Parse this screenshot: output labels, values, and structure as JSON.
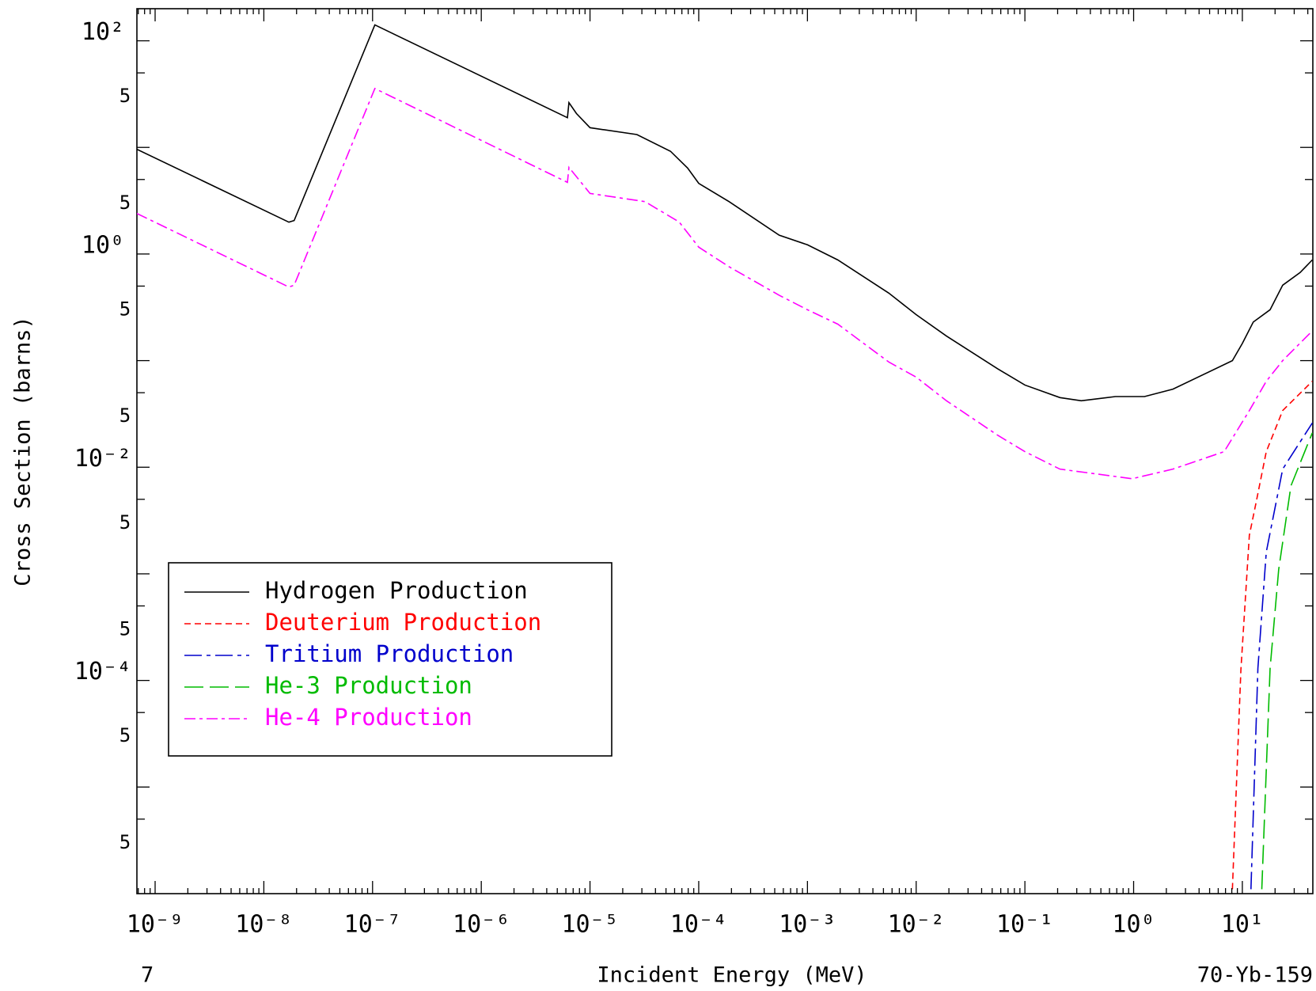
{
  "chart_data": {
    "type": "line",
    "xlabel": "Incident Energy (MeV)",
    "ylabel": "Cross Section (barns)",
    "corner_left": "7",
    "corner_right": "70-Yb-159",
    "xlog": true,
    "ylog": true,
    "legend": "lower left",
    "xlim": [
      6.8e-10,
      44.5
    ],
    "ylim": [
      1e-06,
      200
    ],
    "xticks": [
      {
        "value": 1e-09,
        "label": "10⁻⁹"
      },
      {
        "value": 1e-08,
        "label": "10⁻⁸"
      },
      {
        "value": 1e-07,
        "label": "10⁻⁷"
      },
      {
        "value": 1e-06,
        "label": "10⁻⁶"
      },
      {
        "value": 1e-05,
        "label": "10⁻⁵"
      },
      {
        "value": 0.0001,
        "label": "10⁻⁴"
      },
      {
        "value": 0.001,
        "label": "10⁻³"
      },
      {
        "value": 0.01,
        "label": "10⁻²"
      },
      {
        "value": 0.1,
        "label": "10⁻¹"
      },
      {
        "value": 1,
        "label": "10⁰"
      },
      {
        "value": 10,
        "label": "10¹"
      }
    ],
    "xminorticks": [
      7e-10,
      8e-10,
      9e-10,
      2e-09,
      3e-09,
      4e-09,
      5e-09,
      6e-09,
      7e-09,
      8e-09,
      9e-09,
      2e-08,
      3e-08,
      4e-08,
      5e-08,
      6e-08,
      7e-08,
      8e-08,
      9e-08,
      2e-07,
      3e-07,
      4e-07,
      5e-07,
      6e-07,
      7e-07,
      8e-07,
      9e-07,
      2e-06,
      3e-06,
      4e-06,
      5e-06,
      6e-06,
      7e-06,
      8e-06,
      9e-06,
      2e-05,
      3e-05,
      4e-05,
      5e-05,
      6e-05,
      7e-05,
      8e-05,
      9e-05,
      0.0002,
      0.0003,
      0.0004,
      0.0005,
      0.0006,
      0.0007,
      0.0008,
      0.0009,
      0.002,
      0.003,
      0.004,
      0.005,
      0.006,
      0.007,
      0.008,
      0.009,
      0.02,
      0.03,
      0.04,
      0.05,
      0.06,
      0.07,
      0.08,
      0.09,
      0.2,
      0.3,
      0.4,
      0.5,
      0.6,
      0.7,
      0.8,
      0.9,
      2,
      3,
      4,
      5,
      6,
      7,
      8,
      9,
      20,
      30,
      40
    ],
    "yticks": [
      {
        "value": 100,
        "label": "10²"
      },
      {
        "value": 50,
        "label": "5"
      },
      {
        "value": 10,
        "label": ""
      },
      {
        "value": 5,
        "label": "5"
      },
      {
        "value": 1,
        "label": "10⁰"
      },
      {
        "value": 0.5,
        "label": "5"
      },
      {
        "value": 0.1,
        "label": ""
      },
      {
        "value": 0.05,
        "label": "5"
      },
      {
        "value": 0.01,
        "label": "10⁻²"
      },
      {
        "value": 0.005,
        "label": "5"
      },
      {
        "value": 0.001,
        "label": ""
      },
      {
        "value": 0.0005,
        "label": "5"
      },
      {
        "value": 0.0001,
        "label": "10⁻⁴"
      },
      {
        "value": 5e-05,
        "label": "5"
      },
      {
        "value": 1e-05,
        "label": ""
      },
      {
        "value": 5e-06,
        "label": "5"
      }
    ],
    "series": [
      {
        "name": "Hydrogen Production",
        "color": "#000000",
        "dash": "none",
        "x": [
          6.8e-10,
          1.7e-08,
          1.9e-08,
          1.05e-07,
          6.2e-06,
          6.4e-06,
          7.5e-06,
          1e-05,
          2.7e-05,
          5.5e-05,
          7.9e-05,
          0.0001,
          0.00019,
          0.00055,
          0.001,
          0.0019,
          0.0056,
          0.01,
          0.019,
          0.056,
          0.1,
          0.21,
          0.33,
          0.68,
          1.26,
          2.3,
          8.1,
          10,
          12.6,
          18,
          23.5,
          34,
          44
        ],
        "values": [
          9.6,
          1.99,
          2.06,
          141,
          19,
          26.3,
          20.8,
          15.3,
          13.2,
          9.2,
          6.4,
          4.6,
          3.1,
          1.5,
          1.22,
          0.88,
          0.43,
          0.27,
          0.17,
          0.084,
          0.059,
          0.045,
          0.042,
          0.046,
          0.046,
          0.054,
          0.1,
          0.145,
          0.23,
          0.3,
          0.51,
          0.67,
          0.88
        ]
      },
      {
        "name": "Deuterium Production",
        "color": "#ff0000",
        "dash": "8 5",
        "x": [
          8.1,
          9.7,
          11.6,
          13.4,
          16.6,
          23.5,
          44
        ],
        "values": [
          1.1e-06,
          0.000126,
          0.0023,
          0.0047,
          0.014,
          0.034,
          0.064
        ]
      },
      {
        "name": "Tritium Production",
        "color": "#0000cc",
        "dash": "22 6 5 6",
        "x": [
          12,
          13.9,
          16.6,
          23.5,
          44
        ],
        "values": [
          1.1e-06,
          0.00013,
          0.0016,
          0.0096,
          0.026
        ]
      },
      {
        "name": "He-3 Production",
        "color": "#00bb00",
        "dash": "24 8",
        "x": [
          15.1,
          18,
          21.6,
          28,
          44
        ],
        "values": [
          1.1e-06,
          0.00013,
          0.0011,
          0.0067,
          0.021
        ]
      },
      {
        "name": "He-4 Production",
        "color": "#ff00ff",
        "dash": "14 5 4 5",
        "x": [
          6.8e-10,
          1.7e-08,
          1.9e-08,
          1.05e-07,
          6.2e-06,
          6.4e-06,
          1e-05,
          3.2e-05,
          6.6e-05,
          0.0001,
          0.00019,
          0.00055,
          0.001,
          0.0019,
          0.0056,
          0.01,
          0.019,
          0.056,
          0.1,
          0.21,
          0.4,
          0.97,
          2.3,
          6.8,
          11.6,
          16.6,
          23.5,
          44
        ],
        "values": [
          2.4,
          0.49,
          0.51,
          35.7,
          4.7,
          6.5,
          3.7,
          3.1,
          2.0,
          1.16,
          0.76,
          0.41,
          0.3,
          0.22,
          0.097,
          0.07,
          0.042,
          0.02,
          0.014,
          0.0096,
          0.0088,
          0.0078,
          0.0096,
          0.014,
          0.034,
          0.064,
          0.1,
          0.19
        ]
      }
    ]
  }
}
